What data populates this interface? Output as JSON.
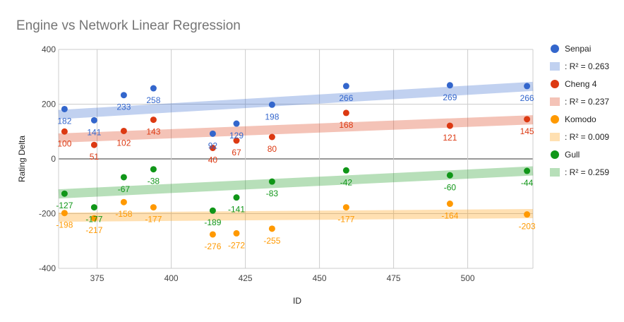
{
  "chart_data": {
    "type": "scatter",
    "title": "Engine vs Network Linear Regression",
    "xlabel": "ID",
    "ylabel": "Rating Delta",
    "xlim": [
      362,
      522
    ],
    "ylim": [
      -400,
      400
    ],
    "xticks": [
      375,
      400,
      425,
      450,
      475,
      500
    ],
    "yticks": [
      -400,
      -200,
      0,
      200,
      400
    ],
    "x": [
      364,
      374,
      384,
      394,
      414,
      422,
      434,
      459,
      494,
      520
    ],
    "series": [
      {
        "name": "Senpai",
        "color": "#3366cc",
        "trend_color": "#3366cc",
        "trend_label": ": R² = 0.263",
        "trend": [
          162,
          265
        ],
        "values": [
          182,
          141,
          233,
          258,
          92,
          129,
          198,
          266,
          269,
          266
        ],
        "labels": [
          "182",
          "141",
          "233",
          "258",
          "92",
          "129",
          "198",
          "266",
          "269",
          "266"
        ]
      },
      {
        "name": "Cheng 4",
        "color": "#dc3912",
        "trend_color": "#dc3912",
        "trend_label": ": R² = 0.237",
        "trend": [
          76,
          143
        ],
        "values": [
          100,
          51,
          102,
          143,
          40,
          67,
          80,
          168,
          121,
          145
        ],
        "labels": [
          "100",
          "51",
          "102",
          "143",
          "40",
          "67",
          "80",
          "168",
          "121",
          "145"
        ]
      },
      {
        "name": "Komodo",
        "color": "#ff9900",
        "trend_color": "#ff9900",
        "trend_label": ": R² = 0.009",
        "trend": [
          -213,
          -200
        ],
        "values": [
          -198,
          -217,
          -158,
          -177,
          -276,
          -272,
          -255,
          -177,
          -164,
          -203
        ],
        "labels": [
          "-198",
          "-217",
          "-158",
          "-177",
          "-276",
          "-272",
          "-255",
          "-177",
          "-164",
          "-203"
        ]
      },
      {
        "name": "Gull",
        "color": "#109618",
        "trend_color": "#109618",
        "trend_label": ": R² = 0.259",
        "trend": [
          -128,
          -44
        ],
        "values": [
          -127,
          -177,
          -67,
          -38,
          -189,
          -141,
          -83,
          -42,
          -60,
          -44
        ],
        "labels": [
          "-127",
          "-177",
          "-67",
          "-38",
          "-189",
          "-141",
          "-83",
          "-42",
          "-60",
          "-44"
        ]
      }
    ],
    "legend_position": "right",
    "grid": true
  }
}
